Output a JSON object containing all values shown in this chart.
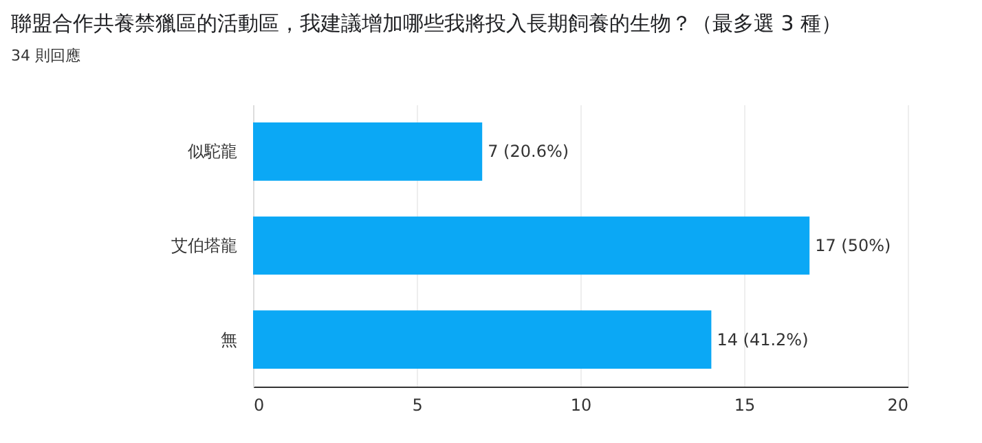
{
  "chart_data": {
    "type": "bar",
    "orientation": "horizontal",
    "title": "聯盟合作共養禁獵區的活動區，我建議增加哪些我將投入長期飼養的生物？（最多選 3 種）",
    "subtitle": "34 則回應",
    "categories": [
      "似駝龍",
      "艾伯塔龍",
      "無"
    ],
    "values": [
      7,
      17,
      14
    ],
    "value_labels": [
      "7 (20.6%)",
      "17 (50%)",
      "14 (41.2%)"
    ],
    "color": "#0ba8f5",
    "xlim": [
      0,
      20
    ],
    "xticks": [
      0,
      5,
      10,
      15,
      20
    ],
    "grid": "x"
  }
}
